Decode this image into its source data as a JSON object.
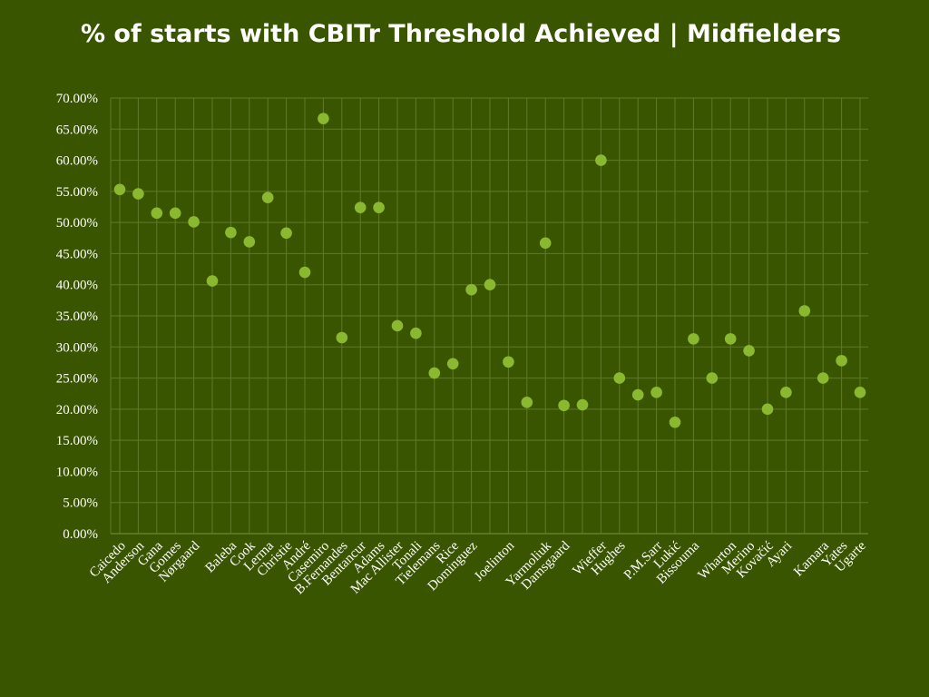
{
  "chart_data": {
    "type": "scatter",
    "title": "% of starts with CBITr Threshold Achieved | Midfielders",
    "xlabel": "",
    "ylabel": "",
    "ylim": [
      0,
      70
    ],
    "y_ticks": [
      "0.00%",
      "5.00%",
      "10.00%",
      "15.00%",
      "20.00%",
      "25.00%",
      "30.00%",
      "35.00%",
      "40.00%",
      "45.00%",
      "50.00%",
      "55.00%",
      "60.00%",
      "65.00%",
      "70.00%"
    ],
    "grid": true,
    "legend": "none",
    "point_color": "#8ab82e",
    "background_color": "#3a5500",
    "categories": [
      "Caicedo",
      "Anderson",
      "Gana",
      "Gomes",
      "Nørgaard",
      "",
      "Baleba",
      "Cook",
      "Lerma",
      "Christie",
      "André",
      "Casemiro",
      "B.Fernandes",
      "Bentancur",
      "Adams",
      "Mac Allister",
      "Tonali",
      "Tielemans",
      "Rice",
      "Dominguez",
      "",
      "Joelinton",
      "",
      "Yarmoliuk",
      "Damsgaard",
      "",
      "Wieffer",
      "Hughes",
      "",
      "P.M.Sarr",
      "Lukić",
      "Bissouma",
      "",
      "Wharton",
      "Merino",
      "Kovačić",
      "Ayari",
      "",
      "Kamara",
      "Yates",
      "Ugarte"
    ],
    "values": [
      55.3,
      54.6,
      51.5,
      51.5,
      50.1,
      40.6,
      48.4,
      46.9,
      54.0,
      48.3,
      42.0,
      66.7,
      31.5,
      52.4,
      52.4,
      33.4,
      32.2,
      25.8,
      27.3,
      39.2,
      40.0,
      27.6,
      21.1,
      46.7,
      20.6,
      20.7,
      60.0,
      25.0,
      22.3,
      22.7,
      17.9,
      31.3,
      25.0,
      31.3,
      29.4,
      20.0,
      22.7,
      35.8,
      25.0,
      27.8,
      22.7
    ]
  }
}
